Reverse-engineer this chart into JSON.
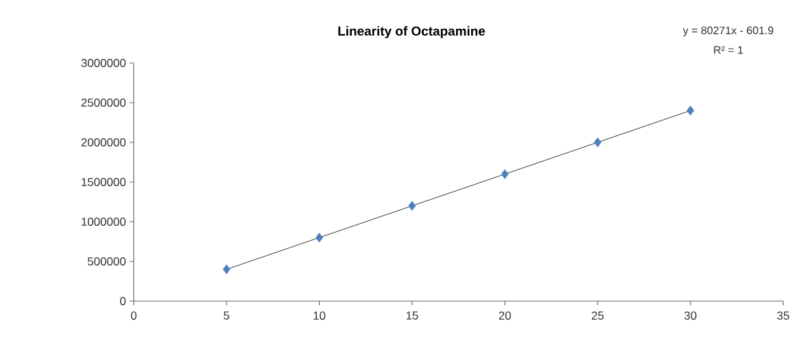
{
  "chart_data": {
    "type": "scatter",
    "title": "Linearity of Octapamine",
    "annotations": [
      "y = 80271x - 601.9",
      "R² = 1"
    ],
    "series": [
      {
        "type": "scatter",
        "color": "#4f81bd",
        "marker": "diamond",
        "x": [
          5,
          10,
          15,
          20,
          25,
          30
        ],
        "values": [
          400000,
          800000,
          1200000,
          1600000,
          2000000,
          2400000
        ]
      },
      {
        "type": "line",
        "color": "#000000",
        "marker": "none",
        "line_style": "solid",
        "x": [
          5,
          30
        ],
        "values": [
          400000,
          2400000
        ]
      }
    ],
    "xlim": [
      0,
      35
    ],
    "xticks": [
      0,
      5,
      10,
      15,
      20,
      25,
      30,
      35
    ],
    "ylim": [
      0,
      3000000
    ],
    "yticks": [
      0,
      500000,
      1000000,
      1500000,
      2000000,
      2500000,
      3000000
    ],
    "grid": false
  }
}
